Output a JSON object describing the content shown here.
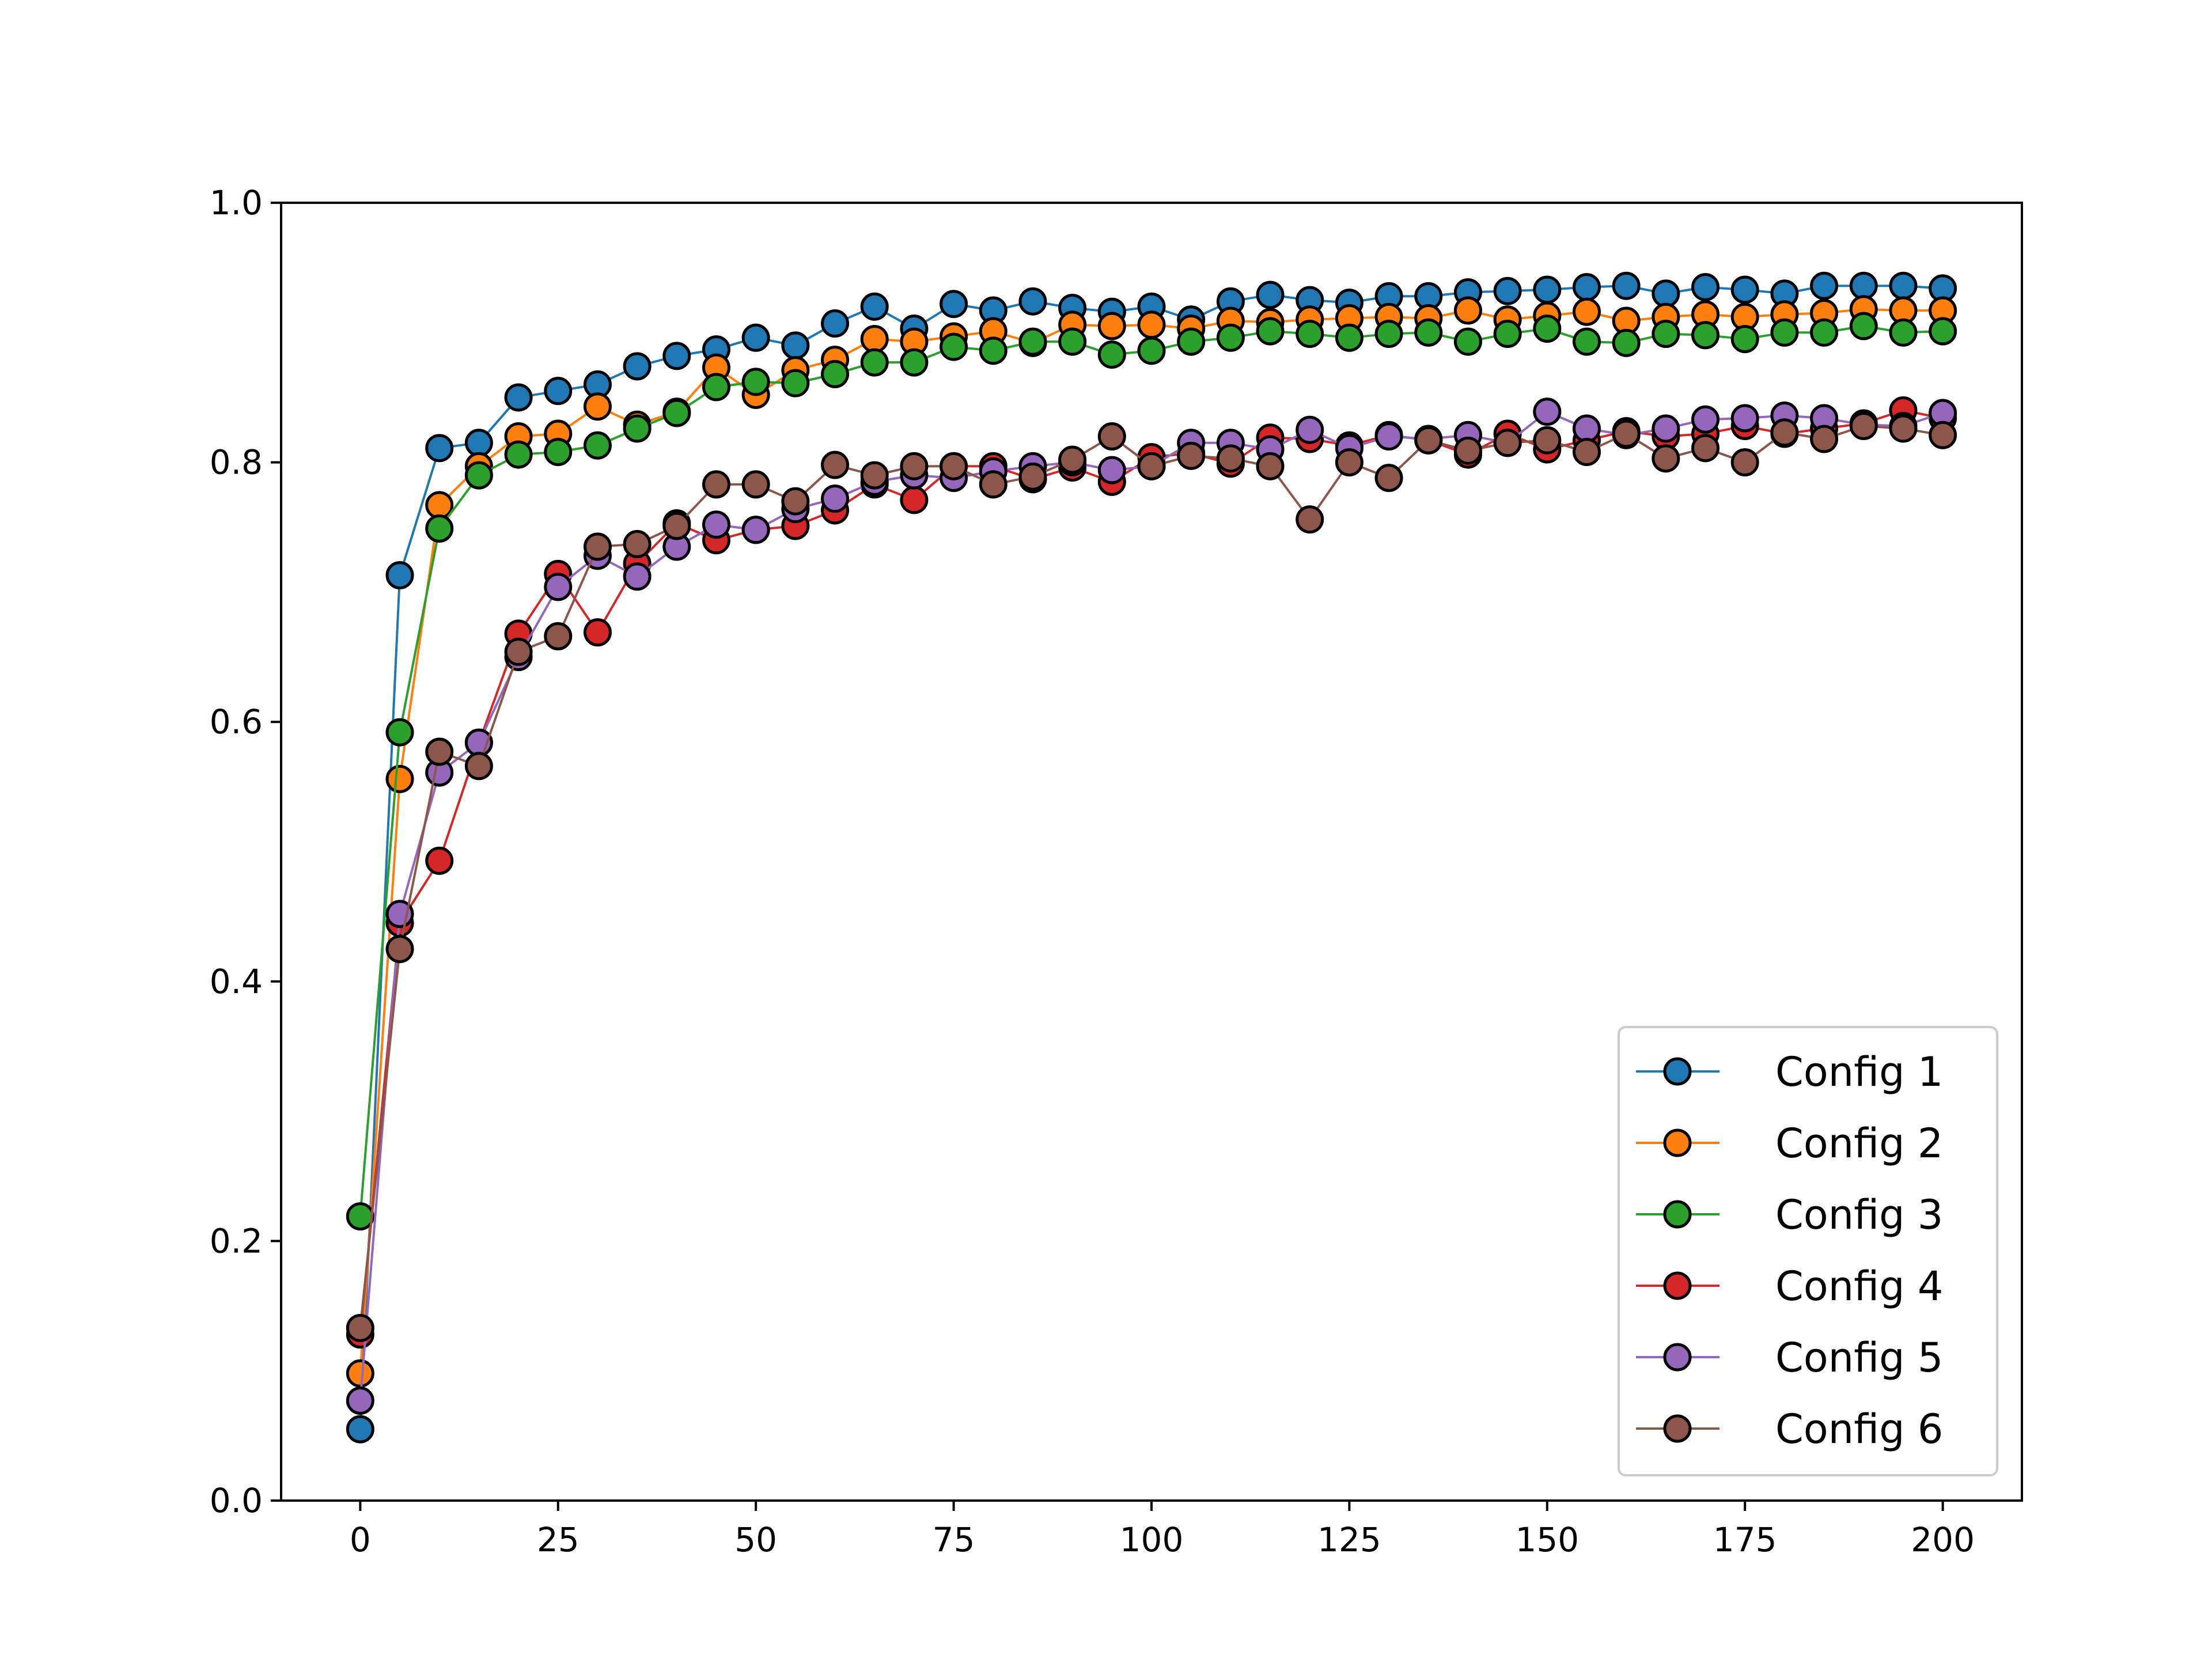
{
  "chart_data": {
    "type": "line",
    "title": "",
    "xlabel": "",
    "ylabel": "",
    "xlim": [
      -10,
      210
    ],
    "ylim": [
      0,
      1.0
    ],
    "x_ticks": [
      0,
      25,
      50,
      75,
      100,
      125,
      150,
      175,
      200
    ],
    "x_tick_labels": [
      "0",
      "25",
      "50",
      "75",
      "100",
      "125",
      "150",
      "175",
      "200"
    ],
    "y_ticks": [
      0,
      0.2,
      0.4,
      0.6,
      0.8,
      1.0
    ],
    "y_tick_labels": [
      "0.0",
      "0.2",
      "0.4",
      "0.6",
      "0.8",
      "1.0"
    ],
    "grid": false,
    "legend_position": "lower-right",
    "x": [
      0,
      5,
      10,
      15,
      20,
      25,
      30,
      35,
      40,
      45,
      50,
      55,
      60,
      65,
      70,
      75,
      80,
      85,
      90,
      95,
      100,
      105,
      110,
      115,
      120,
      125,
      130,
      135,
      140,
      145,
      150,
      155,
      160,
      165,
      170,
      175,
      180,
      185,
      190,
      195,
      200
    ],
    "series": [
      {
        "name": "Config 1",
        "color": "#1f77b4",
        "values": [
          0.055,
          0.713,
          0.811,
          0.815,
          0.85,
          0.855,
          0.86,
          0.874,
          0.882,
          0.887,
          0.896,
          0.89,
          0.907,
          0.92,
          0.903,
          0.922,
          0.917,
          0.924,
          0.919,
          0.916,
          0.92,
          0.91,
          0.924,
          0.929,
          0.925,
          0.923,
          0.928,
          0.928,
          0.931,
          0.932,
          0.933,
          0.935,
          0.936,
          0.93,
          0.935,
          0.933,
          0.93,
          0.936,
          0.936,
          0.936,
          0.934
        ]
      },
      {
        "name": "Config 2",
        "color": "#ff7f0e",
        "values": [
          0.098,
          0.556,
          0.767,
          0.797,
          0.82,
          0.822,
          0.843,
          0.829,
          0.839,
          0.873,
          0.852,
          0.871,
          0.879,
          0.895,
          0.893,
          0.897,
          0.901,
          0.892,
          0.906,
          0.905,
          0.906,
          0.903,
          0.909,
          0.908,
          0.91,
          0.911,
          0.912,
          0.911,
          0.917,
          0.91,
          0.913,
          0.916,
          0.909,
          0.912,
          0.914,
          0.912,
          0.914,
          0.915,
          0.918,
          0.917,
          0.917
        ]
      },
      {
        "name": "Config 3",
        "color": "#2ca02c",
        "values": [
          0.219,
          0.592,
          0.749,
          0.79,
          0.806,
          0.808,
          0.813,
          0.826,
          0.838,
          0.858,
          0.862,
          0.861,
          0.868,
          0.877,
          0.877,
          0.889,
          0.886,
          0.893,
          0.893,
          0.883,
          0.886,
          0.893,
          0.896,
          0.901,
          0.899,
          0.896,
          0.899,
          0.9,
          0.893,
          0.899,
          0.903,
          0.893,
          0.892,
          0.899,
          0.898,
          0.895,
          0.9,
          0.9,
          0.905,
          0.9,
          0.901
        ]
      },
      {
        "name": "Config 4",
        "color": "#d62728",
        "values": [
          0.128,
          0.445,
          0.493,
          0.584,
          0.668,
          0.714,
          0.669,
          0.722,
          0.753,
          0.74,
          0.748,
          0.751,
          0.763,
          0.783,
          0.771,
          0.797,
          0.797,
          0.787,
          0.796,
          0.785,
          0.804,
          0.807,
          0.799,
          0.819,
          0.818,
          0.813,
          0.821,
          0.817,
          0.806,
          0.822,
          0.81,
          0.817,
          0.824,
          0.82,
          0.822,
          0.828,
          0.822,
          0.826,
          0.83,
          0.84,
          0.834
        ]
      },
      {
        "name": "Config 5",
        "color": "#9467bd",
        "values": [
          0.077,
          0.452,
          0.561,
          0.584,
          0.65,
          0.704,
          0.728,
          0.712,
          0.735,
          0.752,
          0.748,
          0.764,
          0.772,
          0.785,
          0.79,
          0.788,
          0.793,
          0.797,
          0.8,
          0.794,
          0.797,
          0.815,
          0.815,
          0.81,
          0.825,
          0.811,
          0.82,
          0.818,
          0.821,
          0.815,
          0.839,
          0.826,
          0.821,
          0.826,
          0.833,
          0.834,
          0.836,
          0.834,
          0.829,
          0.828,
          0.838
        ]
      },
      {
        "name": "Config 6",
        "color": "#8c564b",
        "values": [
          0.133,
          0.425,
          0.577,
          0.566,
          0.654,
          0.666,
          0.735,
          0.737,
          0.751,
          0.783,
          0.783,
          0.77,
          0.798,
          0.79,
          0.797,
          0.797,
          0.783,
          0.789,
          0.802,
          0.82,
          0.797,
          0.805,
          0.803,
          0.797,
          0.756,
          0.8,
          0.788,
          0.817,
          0.809,
          0.815,
          0.817,
          0.808,
          0.822,
          0.803,
          0.811,
          0.8,
          0.823,
          0.818,
          0.828,
          0.826,
          0.821
        ]
      }
    ]
  }
}
